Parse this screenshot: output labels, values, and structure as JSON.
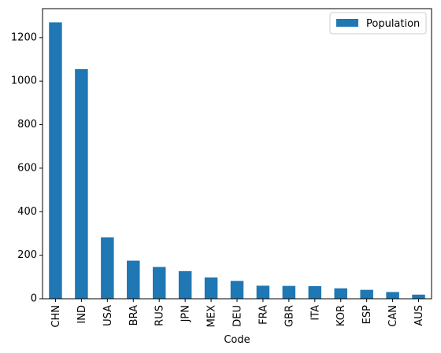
{
  "chart_data": {
    "type": "bar",
    "categories": [
      "CHN",
      "IND",
      "USA",
      "BRA",
      "RUS",
      "JPN",
      "MEX",
      "DEU",
      "FRA",
      "GBR",
      "ITA",
      "KOR",
      "ESP",
      "CAN",
      "AUS"
    ],
    "series": [
      {
        "name": "Population",
        "color": "#1f77b4",
        "values": [
          1270,
          1055,
          282,
          175,
          146,
          127,
          98,
          82,
          60,
          59,
          58,
          48,
          41,
          31,
          19
        ]
      }
    ],
    "title": "",
    "xlabel": "Code",
    "ylabel": "",
    "ylim": [
      0,
      1333
    ],
    "yticks": [
      0,
      200,
      400,
      600,
      800,
      1000,
      1200
    ],
    "grid": false,
    "legend_position": "top-right"
  }
}
